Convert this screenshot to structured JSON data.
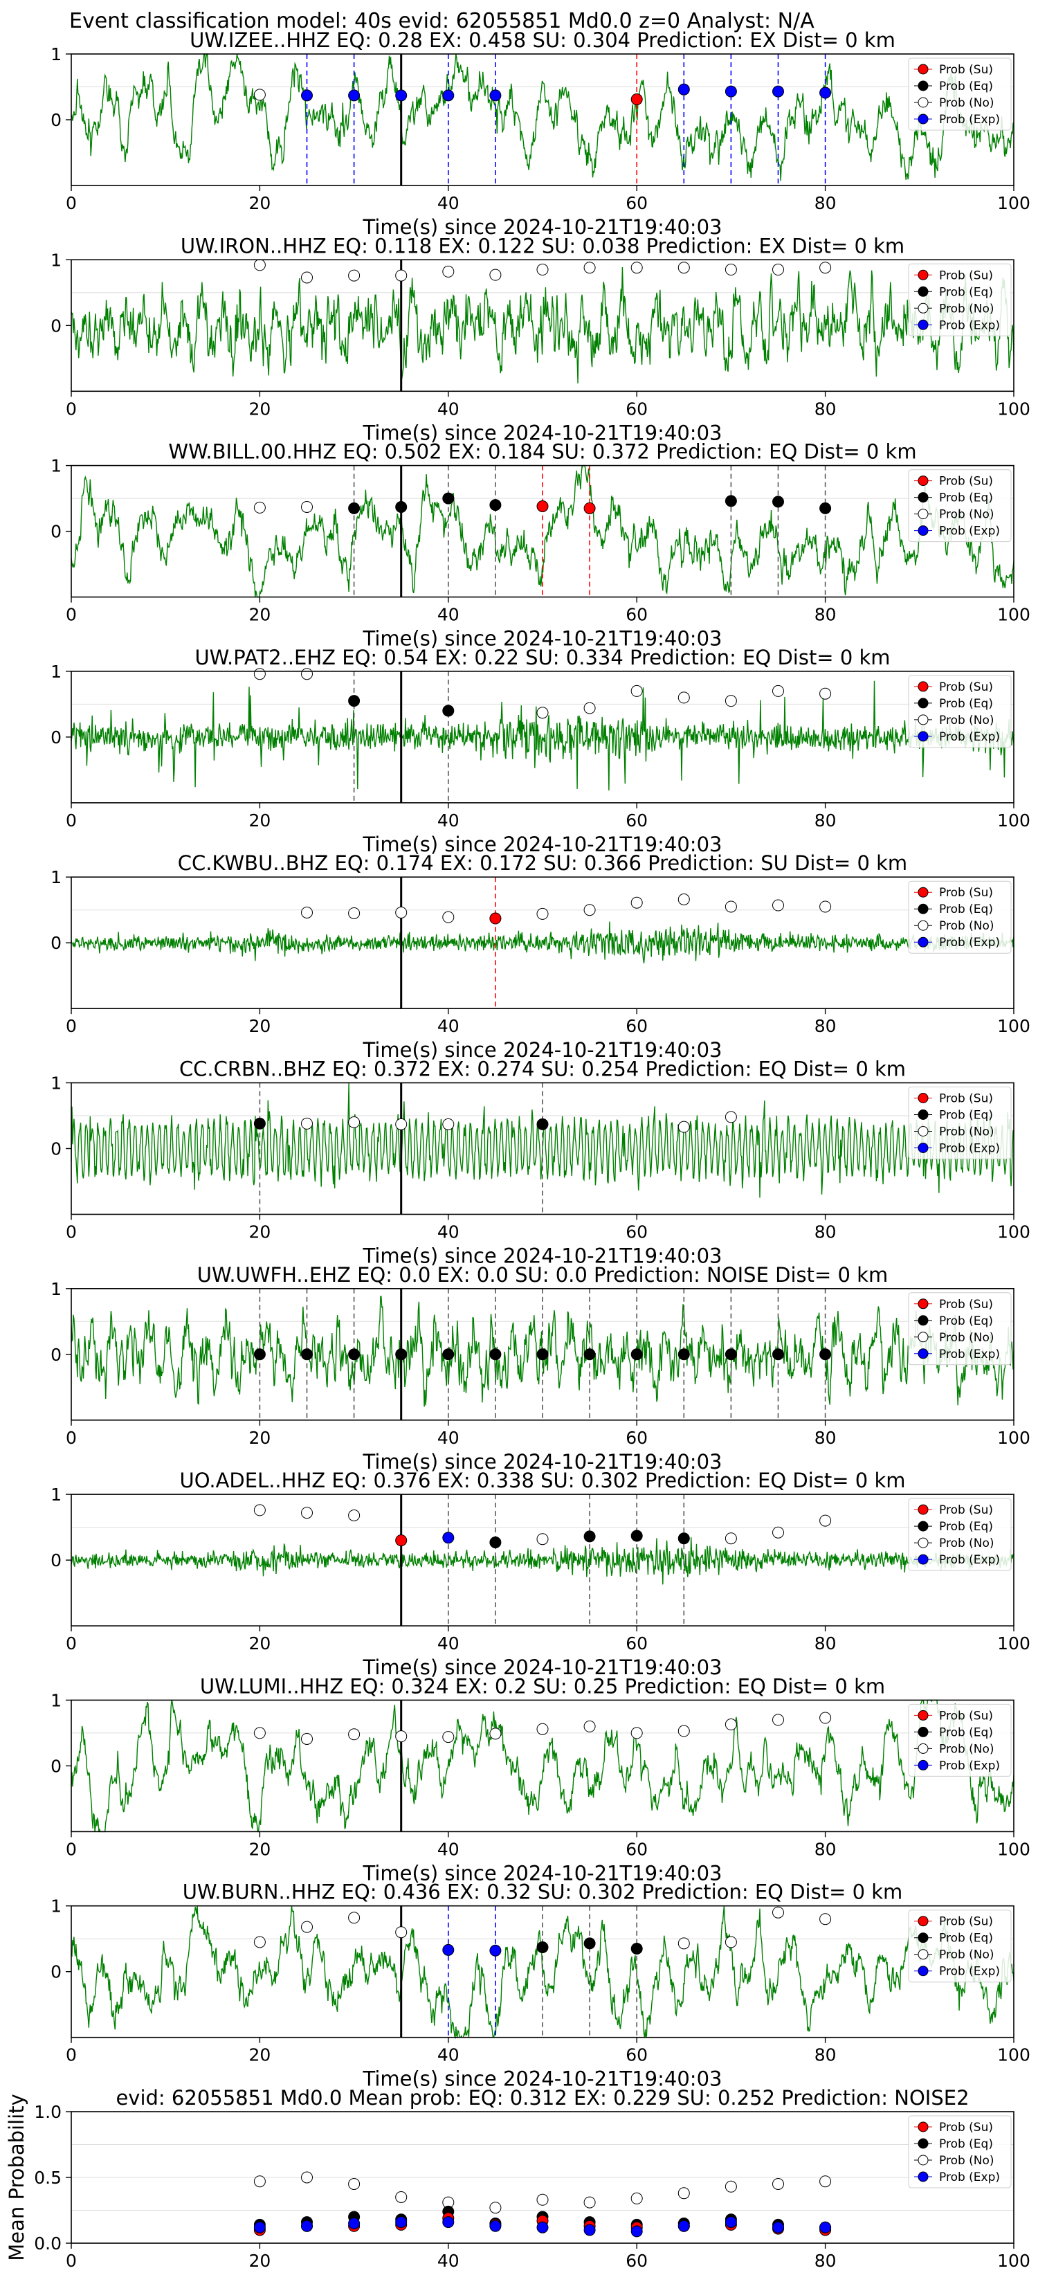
{
  "suptitle": "Event classification model: 40s evid: 62055851 Md0.0 z=0 Analyst: N/A",
  "colors": {
    "trace": "#008000",
    "su": "#ff0000",
    "eq": "#000000",
    "no": "#ffffff",
    "exp": "#0000ff",
    "pick_su": "#ff0000",
    "pick_eq": "#555555",
    "pick_exp": "#0000ff",
    "origin": "#000000",
    "grid": "#dddddd"
  },
  "legend": {
    "su": "Prob (Su)",
    "eq": "Prob (Eq)",
    "no": "Prob (No)",
    "exp": "Prob (Exp)"
  },
  "shared_axes": {
    "xlabel": "Time(s) since 2024-10-21T19:40:03",
    "xlim": [
      0,
      100
    ],
    "xticks": [
      0,
      20,
      40,
      60,
      80,
      100
    ],
    "ylim": [
      -1,
      1
    ],
    "yticks": [
      0,
      1
    ],
    "origin_time": 35
  },
  "chart_data": [
    {
      "type": "line",
      "title": "UW.IZEE..HHZ   EQ: 0.28  EX: 0.458  SU: 0.304   Prediction: EX    Dist= 0 km",
      "trace_style": "lowfreq",
      "points": [
        {
          "t": 20,
          "c": "no",
          "p": 0.38
        },
        {
          "t": 25,
          "c": "exp",
          "p": 0.37
        },
        {
          "t": 30,
          "c": "exp",
          "p": 0.37
        },
        {
          "t": 35,
          "c": "exp",
          "p": 0.37
        },
        {
          "t": 40,
          "c": "exp",
          "p": 0.37
        },
        {
          "t": 45,
          "c": "exp",
          "p": 0.37
        },
        {
          "t": 60,
          "c": "su",
          "p": 0.31
        },
        {
          "t": 65,
          "c": "exp",
          "p": 0.46
        },
        {
          "t": 70,
          "c": "exp",
          "p": 0.43
        },
        {
          "t": 75,
          "c": "exp",
          "p": 0.43
        },
        {
          "t": 80,
          "c": "exp",
          "p": 0.41
        }
      ],
      "picks": [
        {
          "t": 25,
          "c": "exp"
        },
        {
          "t": 30,
          "c": "exp"
        },
        {
          "t": 40,
          "c": "exp"
        },
        {
          "t": 45,
          "c": "exp"
        },
        {
          "t": 60,
          "c": "su"
        },
        {
          "t": 65,
          "c": "exp"
        },
        {
          "t": 70,
          "c": "exp"
        },
        {
          "t": 75,
          "c": "exp"
        },
        {
          "t": 80,
          "c": "exp"
        }
      ]
    },
    {
      "type": "line",
      "title": "UW.IRON..HHZ   EQ: 0.118  EX: 0.122  SU: 0.038   Prediction: EX    Dist= 0 km",
      "trace_style": "noisy",
      "points": [
        {
          "t": 20,
          "c": "no",
          "p": 0.92
        },
        {
          "t": 25,
          "c": "no",
          "p": 0.73
        },
        {
          "t": 30,
          "c": "no",
          "p": 0.76
        },
        {
          "t": 35,
          "c": "no",
          "p": 0.76
        },
        {
          "t": 40,
          "c": "no",
          "p": 0.82
        },
        {
          "t": 45,
          "c": "no",
          "p": 0.77
        },
        {
          "t": 50,
          "c": "no",
          "p": 0.85
        },
        {
          "t": 55,
          "c": "no",
          "p": 0.88
        },
        {
          "t": 60,
          "c": "no",
          "p": 0.88
        },
        {
          "t": 65,
          "c": "no",
          "p": 0.88
        },
        {
          "t": 70,
          "c": "no",
          "p": 0.85
        },
        {
          "t": 75,
          "c": "no",
          "p": 0.85
        },
        {
          "t": 80,
          "c": "no",
          "p": 0.88
        }
      ],
      "picks": []
    },
    {
      "type": "line",
      "title": "WW.BILL.00.HHZ   EQ: 0.502  EX: 0.184  SU: 0.372   Prediction: EQ    Dist= 0 km",
      "trace_style": "lowfreq",
      "points": [
        {
          "t": 20,
          "c": "no",
          "p": 0.36
        },
        {
          "t": 25,
          "c": "no",
          "p": 0.37
        },
        {
          "t": 30,
          "c": "eq",
          "p": 0.35
        },
        {
          "t": 35,
          "c": "eq",
          "p": 0.37
        },
        {
          "t": 40,
          "c": "eq",
          "p": 0.5
        },
        {
          "t": 45,
          "c": "eq",
          "p": 0.4
        },
        {
          "t": 50,
          "c": "su",
          "p": 0.38
        },
        {
          "t": 55,
          "c": "su",
          "p": 0.35
        },
        {
          "t": 70,
          "c": "eq",
          "p": 0.46
        },
        {
          "t": 75,
          "c": "eq",
          "p": 0.45
        },
        {
          "t": 80,
          "c": "eq",
          "p": 0.35
        }
      ],
      "picks": [
        {
          "t": 30,
          "c": "eq"
        },
        {
          "t": 40,
          "c": "eq"
        },
        {
          "t": 45,
          "c": "eq"
        },
        {
          "t": 50,
          "c": "su"
        },
        {
          "t": 55,
          "c": "su"
        },
        {
          "t": 70,
          "c": "eq"
        },
        {
          "t": 75,
          "c": "eq"
        },
        {
          "t": 80,
          "c": "eq"
        }
      ]
    },
    {
      "type": "line",
      "title": "UW.PAT2..EHZ   EQ: 0.54  EX: 0.22  SU: 0.334   Prediction: EQ    Dist= 0 km",
      "trace_style": "spiky",
      "points": [
        {
          "t": 20,
          "c": "no",
          "p": 0.96
        },
        {
          "t": 25,
          "c": "no",
          "p": 0.96
        },
        {
          "t": 30,
          "c": "eq",
          "p": 0.55
        },
        {
          "t": 40,
          "c": "eq",
          "p": 0.4
        },
        {
          "t": 50,
          "c": "no",
          "p": 0.37
        },
        {
          "t": 55,
          "c": "no",
          "p": 0.44
        },
        {
          "t": 60,
          "c": "no",
          "p": 0.7
        },
        {
          "t": 65,
          "c": "no",
          "p": 0.6
        },
        {
          "t": 70,
          "c": "no",
          "p": 0.55
        },
        {
          "t": 75,
          "c": "no",
          "p": 0.7
        },
        {
          "t": 80,
          "c": "no",
          "p": 0.66
        }
      ],
      "picks": [
        {
          "t": 30,
          "c": "eq"
        },
        {
          "t": 40,
          "c": "eq"
        }
      ]
    },
    {
      "type": "line",
      "title": "CC.KWBU..BHZ   EQ: 0.174  EX: 0.172  SU: 0.366   Prediction: SU    Dist= 0 km",
      "trace_style": "burst",
      "points": [
        {
          "t": 25,
          "c": "no",
          "p": 0.46
        },
        {
          "t": 30,
          "c": "no",
          "p": 0.45
        },
        {
          "t": 35,
          "c": "no",
          "p": 0.46
        },
        {
          "t": 40,
          "c": "no",
          "p": 0.39
        },
        {
          "t": 45,
          "c": "su",
          "p": 0.37
        },
        {
          "t": 50,
          "c": "no",
          "p": 0.44
        },
        {
          "t": 55,
          "c": "no",
          "p": 0.5
        },
        {
          "t": 60,
          "c": "no",
          "p": 0.61
        },
        {
          "t": 65,
          "c": "no",
          "p": 0.66
        },
        {
          "t": 70,
          "c": "no",
          "p": 0.55
        },
        {
          "t": 75,
          "c": "no",
          "p": 0.57
        },
        {
          "t": 80,
          "c": "no",
          "p": 0.55
        }
      ],
      "picks": [
        {
          "t": 45,
          "c": "su"
        }
      ]
    },
    {
      "type": "line",
      "title": "CC.CRBN..BHZ   EQ: 0.372  EX: 0.274  SU: 0.254   Prediction: EQ    Dist= 0 km",
      "trace_style": "periodic",
      "points": [
        {
          "t": 20,
          "c": "eq",
          "p": 0.38
        },
        {
          "t": 25,
          "c": "no",
          "p": 0.38
        },
        {
          "t": 30,
          "c": "no",
          "p": 0.4
        },
        {
          "t": 35,
          "c": "no",
          "p": 0.37
        },
        {
          "t": 40,
          "c": "no",
          "p": 0.37
        },
        {
          "t": 50,
          "c": "eq",
          "p": 0.37
        },
        {
          "t": 65,
          "c": "no",
          "p": 0.33
        },
        {
          "t": 70,
          "c": "no",
          "p": 0.48
        }
      ],
      "picks": [
        {
          "t": 20,
          "c": "eq"
        },
        {
          "t": 50,
          "c": "eq"
        }
      ]
    },
    {
      "type": "line",
      "title": "UW.UWFH..EHZ   EQ: 0.0  EX: 0.0  SU: 0.0   Prediction: NOISE    Dist= 0 km",
      "trace_style": "noisy",
      "points": [
        {
          "t": 20,
          "c": "eq",
          "p": 0.0
        },
        {
          "t": 25,
          "c": "eq",
          "p": 0.0
        },
        {
          "t": 30,
          "c": "eq",
          "p": 0.0
        },
        {
          "t": 35,
          "c": "eq",
          "p": 0.0
        },
        {
          "t": 40,
          "c": "eq",
          "p": 0.0
        },
        {
          "t": 45,
          "c": "eq",
          "p": 0.0
        },
        {
          "t": 50,
          "c": "eq",
          "p": 0.0
        },
        {
          "t": 55,
          "c": "eq",
          "p": 0.0
        },
        {
          "t": 60,
          "c": "eq",
          "p": 0.0
        },
        {
          "t": 65,
          "c": "eq",
          "p": 0.0
        },
        {
          "t": 70,
          "c": "eq",
          "p": 0.0
        },
        {
          "t": 75,
          "c": "eq",
          "p": 0.0
        },
        {
          "t": 80,
          "c": "eq",
          "p": 0.0
        }
      ],
      "picks": [
        {
          "t": 20,
          "c": "eq"
        },
        {
          "t": 25,
          "c": "eq"
        },
        {
          "t": 30,
          "c": "eq"
        },
        {
          "t": 40,
          "c": "eq"
        },
        {
          "t": 45,
          "c": "eq"
        },
        {
          "t": 50,
          "c": "eq"
        },
        {
          "t": 55,
          "c": "eq"
        },
        {
          "t": 60,
          "c": "eq"
        },
        {
          "t": 65,
          "c": "eq"
        },
        {
          "t": 70,
          "c": "eq"
        },
        {
          "t": 75,
          "c": "eq"
        },
        {
          "t": 80,
          "c": "eq"
        }
      ]
    },
    {
      "type": "line",
      "title": "UO.ADEL..HHZ   EQ: 0.376  EX: 0.338  SU: 0.302   Prediction: EQ    Dist= 0 km",
      "trace_style": "burst",
      "points": [
        {
          "t": 20,
          "c": "no",
          "p": 0.76
        },
        {
          "t": 25,
          "c": "no",
          "p": 0.72
        },
        {
          "t": 30,
          "c": "no",
          "p": 0.68
        },
        {
          "t": 35,
          "c": "su",
          "p": 0.3
        },
        {
          "t": 40,
          "c": "exp",
          "p": 0.34
        },
        {
          "t": 45,
          "c": "eq",
          "p": 0.27
        },
        {
          "t": 50,
          "c": "no",
          "p": 0.32
        },
        {
          "t": 55,
          "c": "eq",
          "p": 0.36
        },
        {
          "t": 60,
          "c": "eq",
          "p": 0.37
        },
        {
          "t": 65,
          "c": "eq",
          "p": 0.33
        },
        {
          "t": 70,
          "c": "no",
          "p": 0.33
        },
        {
          "t": 75,
          "c": "no",
          "p": 0.42
        },
        {
          "t": 80,
          "c": "no",
          "p": 0.6
        }
      ],
      "picks": [
        {
          "t": 40,
          "c": "eq"
        },
        {
          "t": 45,
          "c": "eq"
        },
        {
          "t": 55,
          "c": "eq"
        },
        {
          "t": 60,
          "c": "eq"
        },
        {
          "t": 65,
          "c": "eq"
        }
      ]
    },
    {
      "type": "line",
      "title": "UW.LUMI..HHZ   EQ: 0.324  EX: 0.2  SU: 0.25   Prediction: EQ    Dist= 0 km",
      "trace_style": "lowfreq",
      "points": [
        {
          "t": 20,
          "c": "no",
          "p": 0.5
        },
        {
          "t": 25,
          "c": "no",
          "p": 0.41
        },
        {
          "t": 30,
          "c": "no",
          "p": 0.48
        },
        {
          "t": 35,
          "c": "no",
          "p": 0.45
        },
        {
          "t": 40,
          "c": "no",
          "p": 0.44
        },
        {
          "t": 45,
          "c": "no",
          "p": 0.49
        },
        {
          "t": 50,
          "c": "no",
          "p": 0.56
        },
        {
          "t": 55,
          "c": "no",
          "p": 0.6
        },
        {
          "t": 60,
          "c": "no",
          "p": 0.5
        },
        {
          "t": 65,
          "c": "no",
          "p": 0.53
        },
        {
          "t": 70,
          "c": "no",
          "p": 0.63
        },
        {
          "t": 75,
          "c": "no",
          "p": 0.7
        },
        {
          "t": 80,
          "c": "no",
          "p": 0.73
        }
      ],
      "picks": []
    },
    {
      "type": "line",
      "title": "UW.BURN..HHZ   EQ: 0.436  EX: 0.32  SU: 0.302   Prediction: EQ    Dist= 0 km",
      "trace_style": "lowfreq",
      "points": [
        {
          "t": 20,
          "c": "no",
          "p": 0.45
        },
        {
          "t": 25,
          "c": "no",
          "p": 0.68
        },
        {
          "t": 30,
          "c": "no",
          "p": 0.82
        },
        {
          "t": 35,
          "c": "no",
          "p": 0.6
        },
        {
          "t": 40,
          "c": "exp",
          "p": 0.33
        },
        {
          "t": 45,
          "c": "exp",
          "p": 0.32
        },
        {
          "t": 50,
          "c": "eq",
          "p": 0.37
        },
        {
          "t": 55,
          "c": "eq",
          "p": 0.43
        },
        {
          "t": 60,
          "c": "eq",
          "p": 0.35
        },
        {
          "t": 65,
          "c": "no",
          "p": 0.43
        },
        {
          "t": 70,
          "c": "no",
          "p": 0.45
        },
        {
          "t": 75,
          "c": "no",
          "p": 0.9
        },
        {
          "t": 80,
          "c": "no",
          "p": 0.8
        }
      ],
      "picks": [
        {
          "t": 40,
          "c": "exp"
        },
        {
          "t": 45,
          "c": "exp"
        },
        {
          "t": 50,
          "c": "eq"
        },
        {
          "t": 55,
          "c": "eq"
        },
        {
          "t": 60,
          "c": "eq"
        }
      ]
    },
    {
      "type": "scatter",
      "title": "evid: 62055851  Md0.0   Mean prob:   EQ: 0.312  EX: 0.229  SU: 0.252   Prediction: NOISE2",
      "ylabel": "Mean Probability",
      "xlim": [
        0,
        100
      ],
      "ylim": [
        0,
        1
      ],
      "xticks": [
        0,
        20,
        40,
        60,
        80,
        100
      ],
      "yticks": [
        0.0,
        0.5,
        1.0
      ],
      "ytick_labels": [
        "0.0",
        "0.5",
        "1.0"
      ],
      "x": [
        20,
        25,
        30,
        35,
        40,
        45,
        50,
        55,
        60,
        65,
        70,
        75,
        80
      ],
      "series": [
        {
          "name": "Prob (No)",
          "key": "no",
          "values": [
            0.47,
            0.5,
            0.45,
            0.35,
            0.31,
            0.27,
            0.33,
            0.31,
            0.34,
            0.38,
            0.43,
            0.45,
            0.47
          ]
        },
        {
          "name": "Prob (Eq)",
          "key": "eq",
          "values": [
            0.14,
            0.16,
            0.2,
            0.18,
            0.24,
            0.15,
            0.2,
            0.16,
            0.14,
            0.15,
            0.18,
            0.14,
            0.12
          ]
        },
        {
          "name": "Prob (Su)",
          "key": "su",
          "values": [
            0.1,
            0.13,
            0.13,
            0.14,
            0.19,
            0.14,
            0.17,
            0.13,
            0.12,
            0.13,
            0.14,
            0.11,
            0.1
          ]
        },
        {
          "name": "Prob (Exp)",
          "key": "exp",
          "values": [
            0.12,
            0.13,
            0.15,
            0.16,
            0.16,
            0.13,
            0.12,
            0.1,
            0.09,
            0.13,
            0.16,
            0.12,
            0.12
          ]
        }
      ]
    }
  ]
}
